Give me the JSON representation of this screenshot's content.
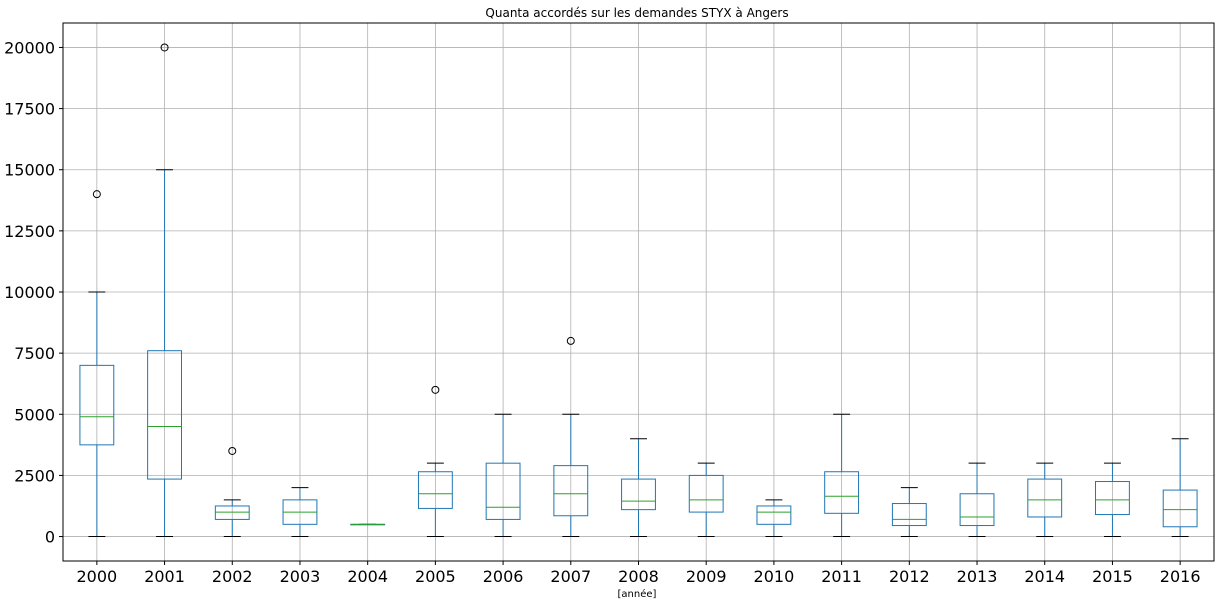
{
  "chart_data": {
    "type": "box",
    "title": "Quanta accordés sur les demandes STYX à Angers",
    "xlabel": "[année]",
    "ylabel": "",
    "ylim": [
      -1000,
      21000
    ],
    "yticks": [
      0,
      2500,
      5000,
      7500,
      10000,
      12500,
      15000,
      17500,
      20000
    ],
    "grid": true,
    "categories": [
      "2000",
      "2001",
      "2002",
      "2003",
      "2004",
      "2005",
      "2006",
      "2007",
      "2008",
      "2009",
      "2010",
      "2011",
      "2012",
      "2013",
      "2014",
      "2015",
      "2016"
    ],
    "boxes": [
      {
        "category": "2000",
        "whislo": 0,
        "q1": 3750,
        "med": 4900,
        "q3": 7000,
        "whishi": 10000,
        "fliers": [
          14000
        ]
      },
      {
        "category": "2001",
        "whislo": 0,
        "q1": 2350,
        "med": 4500,
        "q3": 7600,
        "whishi": 15000,
        "fliers": [
          20000
        ]
      },
      {
        "category": "2002",
        "whislo": 0,
        "q1": 700,
        "med": 1000,
        "q3": 1250,
        "whishi": 1500,
        "fliers": [
          3500
        ]
      },
      {
        "category": "2003",
        "whislo": 0,
        "q1": 500,
        "med": 1000,
        "q3": 1500,
        "whishi": 2000,
        "fliers": []
      },
      {
        "category": "2004",
        "whislo": 500,
        "q1": 500,
        "med": 500,
        "q3": 500,
        "whishi": 500,
        "fliers": []
      },
      {
        "category": "2005",
        "whislo": 0,
        "q1": 1150,
        "med": 1750,
        "q3": 2650,
        "whishi": 3000,
        "fliers": [
          6000
        ]
      },
      {
        "category": "2006",
        "whislo": 0,
        "q1": 700,
        "med": 1200,
        "q3": 3000,
        "whishi": 5000,
        "fliers": []
      },
      {
        "category": "2007",
        "whislo": 0,
        "q1": 850,
        "med": 1750,
        "q3": 2900,
        "whishi": 5000,
        "fliers": [
          8000
        ]
      },
      {
        "category": "2008",
        "whislo": 0,
        "q1": 1100,
        "med": 1450,
        "q3": 2350,
        "whishi": 4000,
        "fliers": []
      },
      {
        "category": "2009",
        "whislo": 0,
        "q1": 1000,
        "med": 1500,
        "q3": 2500,
        "whishi": 3000,
        "fliers": []
      },
      {
        "category": "2010",
        "whislo": 0,
        "q1": 500,
        "med": 1000,
        "q3": 1250,
        "whishi": 1500,
        "fliers": []
      },
      {
        "category": "2011",
        "whislo": 0,
        "q1": 950,
        "med": 1650,
        "q3": 2650,
        "whishi": 5000,
        "fliers": []
      },
      {
        "category": "2012",
        "whislo": 0,
        "q1": 450,
        "med": 700,
        "q3": 1350,
        "whishi": 2000,
        "fliers": []
      },
      {
        "category": "2013",
        "whislo": 0,
        "q1": 450,
        "med": 800,
        "q3": 1750,
        "whishi": 3000,
        "fliers": []
      },
      {
        "category": "2014",
        "whislo": 0,
        "q1": 800,
        "med": 1500,
        "q3": 2350,
        "whishi": 3000,
        "fliers": []
      },
      {
        "category": "2015",
        "whislo": 0,
        "q1": 900,
        "med": 1500,
        "q3": 2250,
        "whishi": 3000,
        "fliers": []
      },
      {
        "category": "2016",
        "whislo": 0,
        "q1": 400,
        "med": 1100,
        "q3": 1900,
        "whishi": 4000,
        "fliers": []
      }
    ],
    "colors": {
      "box": "#1f77b4",
      "median": "#2ca02c",
      "cap": "#000000",
      "grid": "#b0b0b0"
    }
  }
}
